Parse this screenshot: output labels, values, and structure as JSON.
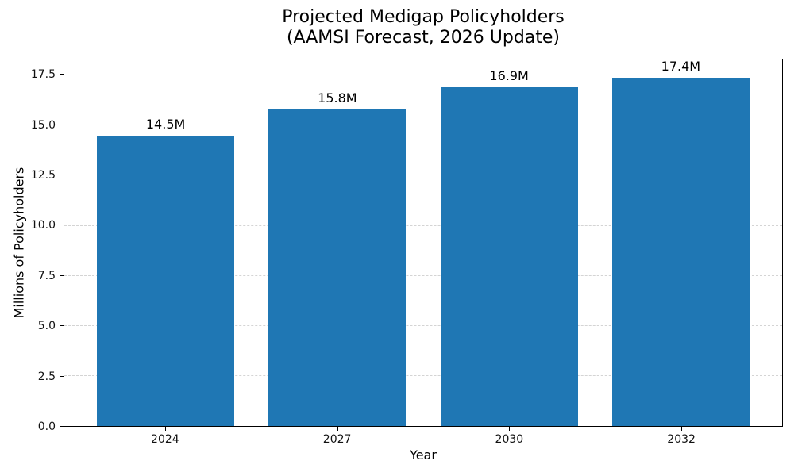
{
  "title": {
    "line1": "Projected Medigap Policyholders",
    "line2": "(AAMSI Forecast, 2026 Update)"
  },
  "chart_data": {
    "type": "bar",
    "title": "Projected Medigap Policyholders (AAMSI Forecast, 2026 Update)",
    "categories": [
      "2024",
      "2027",
      "2030",
      "2032"
    ],
    "values": [
      14.5,
      15.8,
      16.9,
      17.4
    ],
    "bar_labels": [
      "14.5M",
      "15.8M",
      "16.9M",
      "17.4M"
    ],
    "xlabel": "Year",
    "ylabel": "Millions of Policyholders",
    "ylim": [
      0,
      18.3
    ],
    "yticks": [
      0.0,
      2.5,
      5.0,
      7.5,
      10.0,
      12.5,
      15.0,
      17.5
    ],
    "ytick_labels": [
      "0.0",
      "2.5",
      "5.0",
      "7.5",
      "10.0",
      "12.5",
      "15.0",
      "17.5"
    ],
    "grid": "horizontal-dashed",
    "legend": "none",
    "bar_color": "#1f77b4",
    "grid_color": "#d4d4d4",
    "bar_width_fraction": 0.8
  }
}
